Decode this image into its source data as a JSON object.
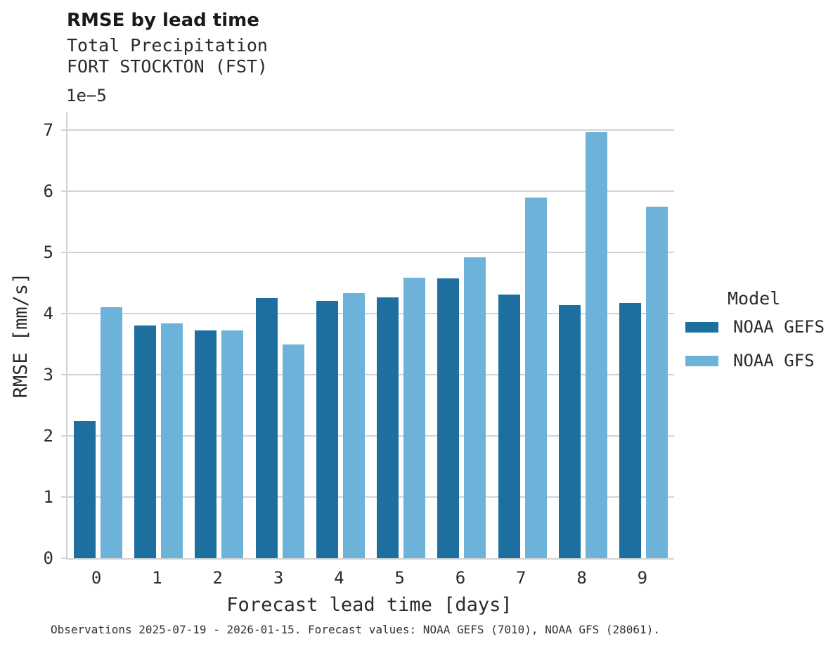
{
  "chart_data": {
    "type": "bar",
    "title": "RMSE by lead time",
    "subtitle_variable": "Total Precipitation",
    "subtitle_station": "FORT STOCKTON (FST)",
    "y_offset_label": "1e−5",
    "xlabel": "Forecast lead time [days]",
    "ylabel": "RMSE [mm/s]",
    "categories": [
      "0",
      "1",
      "2",
      "3",
      "4",
      "5",
      "6",
      "7",
      "8",
      "9"
    ],
    "series": [
      {
        "name": "NOAA GEFS",
        "color": "#1c6f9f",
        "values": [
          2.24,
          3.8,
          3.72,
          4.25,
          4.21,
          4.26,
          4.57,
          4.31,
          4.14,
          4.17
        ]
      },
      {
        "name": "NOAA GFS",
        "color": "#6db2d9",
        "values": [
          4.1,
          3.84,
          3.72,
          3.5,
          4.33,
          4.59,
          4.92,
          5.9,
          6.96,
          5.75
        ]
      }
    ],
    "value_multiplier": "1e-5",
    "ylim": [
      0,
      7
    ],
    "yticks": [
      "0",
      "1",
      "2",
      "3",
      "4",
      "5",
      "6",
      "7"
    ],
    "grid": true,
    "legend": {
      "title": "Model",
      "position": "center right"
    },
    "caption": "Observations 2025-07-19 - 2026-01-15. Forecast values: NOAA GEFS (7010), NOAA GFS (28061)."
  },
  "colors": {
    "gridline": "#d3d3d3",
    "axis_text": "#2b2b2b",
    "title_text": "#1a1a1a"
  }
}
